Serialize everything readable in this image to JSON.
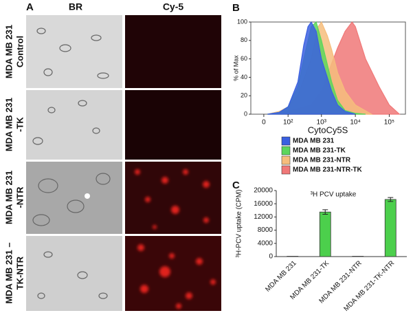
{
  "panel_a": {
    "label": "A",
    "columns": [
      "BR",
      "Cy-5"
    ],
    "rows": [
      {
        "lines": [
          "MDA MB 231",
          "Control"
        ]
      },
      {
        "lines": [
          "MDA MB 231",
          "-TK"
        ]
      },
      {
        "lines": [
          "MDA MB 231",
          "-NTR"
        ]
      },
      {
        "lines": [
          "MDA MB 231 –",
          "TK-NTR"
        ]
      }
    ]
  },
  "panel_labels": [
    "B",
    "C"
  ],
  "chart_data": [
    {
      "type": "area",
      "xlabel": "CytoCy5S",
      "ylabel": "% of Max",
      "xscale": "biexponential",
      "xlim": [
        -40,
        300000
      ],
      "ylim": [
        0,
        100
      ],
      "yticks": [
        0,
        20,
        40,
        60,
        80,
        100
      ],
      "xticks": [
        {
          "value": 0,
          "label": "0"
        },
        {
          "value": 100,
          "label": "10²"
        },
        {
          "value": 1000,
          "label": "10³"
        },
        {
          "value": 10000,
          "label": "10⁴"
        },
        {
          "value": 100000,
          "label": "10⁵"
        }
      ],
      "series": [
        {
          "name": "MDA MB 231-NTR-TK",
          "color": "#f07878",
          "x": [
            10,
            100,
            500,
            1000,
            2000,
            3000,
            5000,
            8000,
            10000,
            20000,
            50000,
            100000,
            200000
          ],
          "values": [
            0,
            3,
            10,
            25,
            55,
            72,
            90,
            100,
            95,
            60,
            30,
            10,
            0
          ]
        },
        {
          "name": "MDA MB 231-NTR",
          "color": "#f6bd7c",
          "x": [
            10,
            50,
            100,
            200,
            500,
            800,
            1000,
            1500,
            2000,
            3000,
            5000,
            10000,
            30000
          ],
          "values": [
            0,
            3,
            8,
            20,
            60,
            95,
            100,
            85,
            70,
            45,
            25,
            10,
            0
          ]
        },
        {
          "name": "MDA MB 231-TK",
          "color": "#5cd65c",
          "x": [
            10,
            50,
            100,
            200,
            300,
            500,
            700,
            1000,
            2000,
            3000,
            5000,
            10000,
            20000
          ],
          "values": [
            0,
            2,
            8,
            30,
            60,
            95,
            100,
            80,
            35,
            15,
            4,
            1,
            0
          ]
        },
        {
          "name": "MDA MB 231",
          "color": "#3a5fe0",
          "x": [
            10,
            50,
            100,
            200,
            300,
            400,
            500,
            700,
            1000,
            2000,
            3000,
            5000,
            10000
          ],
          "values": [
            0,
            2,
            8,
            35,
            75,
            95,
            100,
            90,
            60,
            25,
            10,
            3,
            0
          ]
        }
      ],
      "legend": [
        "MDA MB 231",
        "MDA MB 231-TK",
        "MDA MB 231-NTR",
        "MDA MB 231-NTR-TK"
      ]
    },
    {
      "type": "bar",
      "title": "³H PCV uptake",
      "ylabel": "³H-PCV uptake (CPM)",
      "color": "#4ccf4c",
      "categories": [
        "MDA MB 231",
        "MDA MB 231-TK",
        "MDA MB 231-NTR",
        "MDA MB 231-TK-NTR"
      ],
      "values": [
        100,
        13500,
        100,
        17300
      ],
      "errors": [
        0,
        700,
        0,
        600
      ],
      "ylim": [
        0,
        20000
      ],
      "yticks": [
        0,
        4000,
        8000,
        12000,
        16000,
        20000
      ]
    }
  ]
}
